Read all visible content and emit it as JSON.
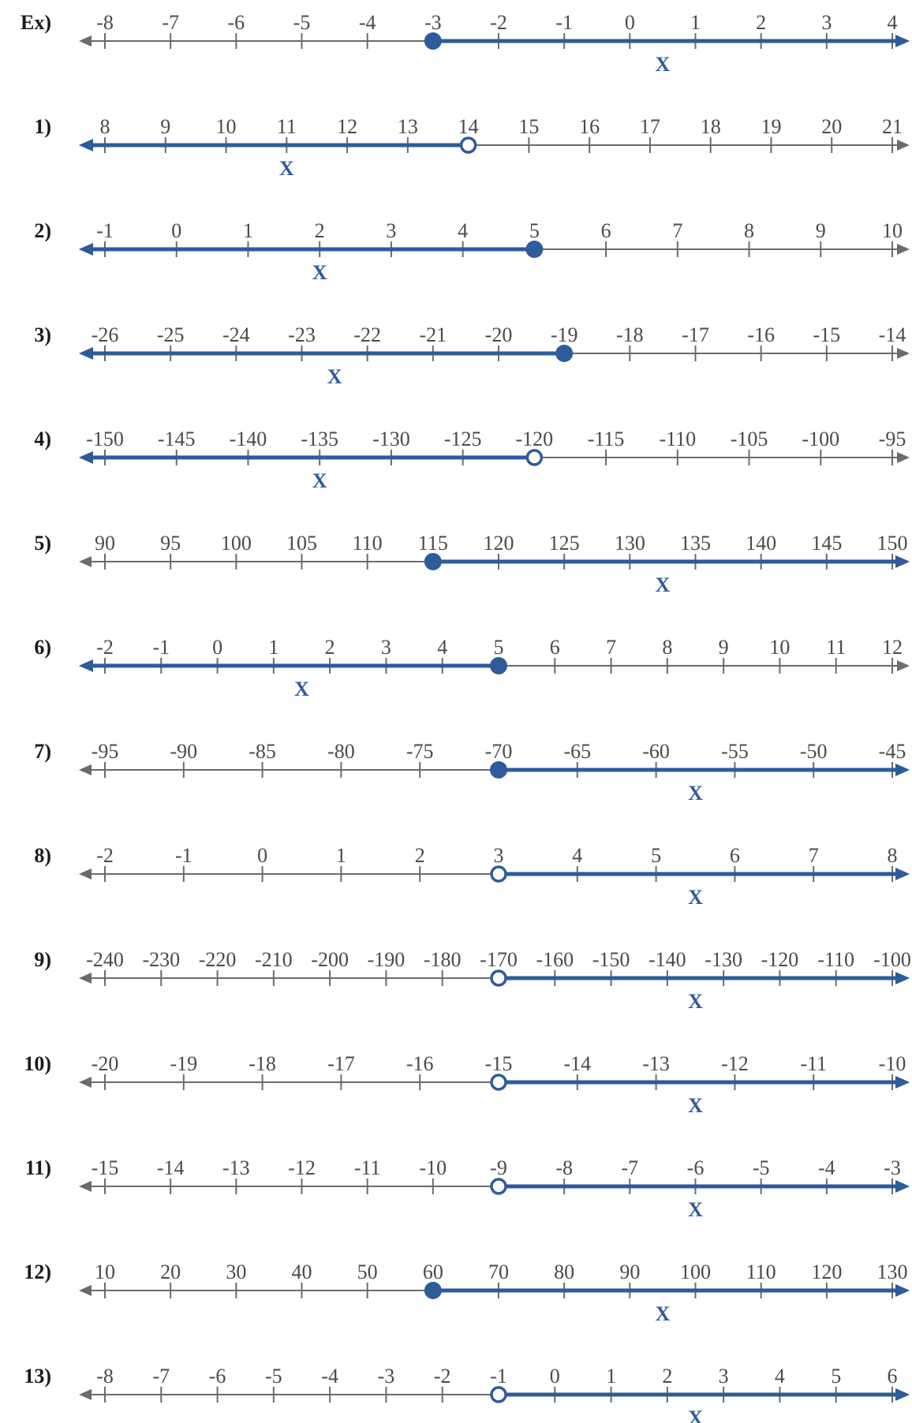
{
  "colors": {
    "base_line": "#6b6b6b",
    "highlight": "#2e5b9a",
    "label": "#1a1a1a",
    "tick_text": "#4a4a4a"
  },
  "variable_label": "X",
  "problems": [
    {
      "label": "Ex)",
      "ticks": [
        "-8",
        "-7",
        "-6",
        "-5",
        "-4",
        "-3",
        "-2",
        "-1",
        "0",
        "1",
        "2",
        "3",
        "4"
      ],
      "point_index": 5,
      "point_closed": true,
      "direction": "right",
      "x_index": 8.5
    },
    {
      "label": "1)",
      "ticks": [
        "8",
        "9",
        "10",
        "11",
        "12",
        "13",
        "14",
        "15",
        "16",
        "17",
        "18",
        "19",
        "20",
        "21"
      ],
      "point_index": 6,
      "point_closed": false,
      "direction": "left",
      "x_index": 3
    },
    {
      "label": "2)",
      "ticks": [
        "-1",
        "0",
        "1",
        "2",
        "3",
        "4",
        "5",
        "6",
        "7",
        "8",
        "9",
        "10"
      ],
      "point_index": 6,
      "point_closed": true,
      "direction": "left",
      "x_index": 3
    },
    {
      "label": "3)",
      "ticks": [
        "-26",
        "-25",
        "-24",
        "-23",
        "-22",
        "-21",
        "-20",
        "-19",
        "-18",
        "-17",
        "-16",
        "-15",
        "-14"
      ],
      "point_index": 7,
      "point_closed": true,
      "direction": "left",
      "x_index": 3.5
    },
    {
      "label": "4)",
      "ticks": [
        "-150",
        "-145",
        "-140",
        "-135",
        "-130",
        "-125",
        "-120",
        "-115",
        "-110",
        "-105",
        "-100",
        "-95"
      ],
      "point_index": 6,
      "point_closed": false,
      "direction": "left",
      "x_index": 3
    },
    {
      "label": "5)",
      "ticks": [
        "90",
        "95",
        "100",
        "105",
        "110",
        "115",
        "120",
        "125",
        "130",
        "135",
        "140",
        "145",
        "150"
      ],
      "point_index": 5,
      "point_closed": true,
      "direction": "right",
      "x_index": 8.5
    },
    {
      "label": "6)",
      "ticks": [
        "-2",
        "-1",
        "0",
        "1",
        "2",
        "3",
        "4",
        "5",
        "6",
        "7",
        "8",
        "9",
        "10",
        "11",
        "12"
      ],
      "point_index": 7,
      "point_closed": true,
      "direction": "left",
      "x_index": 3.5
    },
    {
      "label": "7)",
      "ticks": [
        "-95",
        "-90",
        "-85",
        "-80",
        "-75",
        "-70",
        "-65",
        "-60",
        "-55",
        "-50",
        "-45"
      ],
      "point_index": 5,
      "point_closed": true,
      "direction": "right",
      "x_index": 7.5
    },
    {
      "label": "8)",
      "ticks": [
        "-2",
        "-1",
        "0",
        "1",
        "2",
        "3",
        "4",
        "5",
        "6",
        "7",
        "8"
      ],
      "point_index": 5,
      "point_closed": false,
      "direction": "right",
      "x_index": 7.5
    },
    {
      "label": "9)",
      "ticks": [
        "-240",
        "-230",
        "-220",
        "-210",
        "-200",
        "-190",
        "-180",
        "-170",
        "-160",
        "-150",
        "-140",
        "-130",
        "-120",
        "-110",
        "-100"
      ],
      "point_index": 7,
      "point_closed": false,
      "direction": "right",
      "x_index": 10.5
    },
    {
      "label": "10)",
      "ticks": [
        "-20",
        "-19",
        "-18",
        "-17",
        "-16",
        "-15",
        "-14",
        "-13",
        "-12",
        "-11",
        "-10"
      ],
      "point_index": 5,
      "point_closed": false,
      "direction": "right",
      "x_index": 7.5
    },
    {
      "label": "11)",
      "ticks": [
        "-15",
        "-14",
        "-13",
        "-12",
        "-11",
        "-10",
        "-9",
        "-8",
        "-7",
        "-6",
        "-5",
        "-4",
        "-3"
      ],
      "point_index": 6,
      "point_closed": false,
      "direction": "right",
      "x_index": 9
    },
    {
      "label": "12)",
      "ticks": [
        "10",
        "20",
        "30",
        "40",
        "50",
        "60",
        "70",
        "80",
        "90",
        "100",
        "110",
        "120",
        "130"
      ],
      "point_index": 5,
      "point_closed": true,
      "direction": "right",
      "x_index": 8.5
    },
    {
      "label": "13)",
      "ticks": [
        "-8",
        "-7",
        "-6",
        "-5",
        "-4",
        "-3",
        "-2",
        "-1",
        "0",
        "1",
        "2",
        "3",
        "4",
        "5",
        "6"
      ],
      "point_index": 7,
      "point_closed": false,
      "direction": "right",
      "x_index": 10.5
    }
  ]
}
